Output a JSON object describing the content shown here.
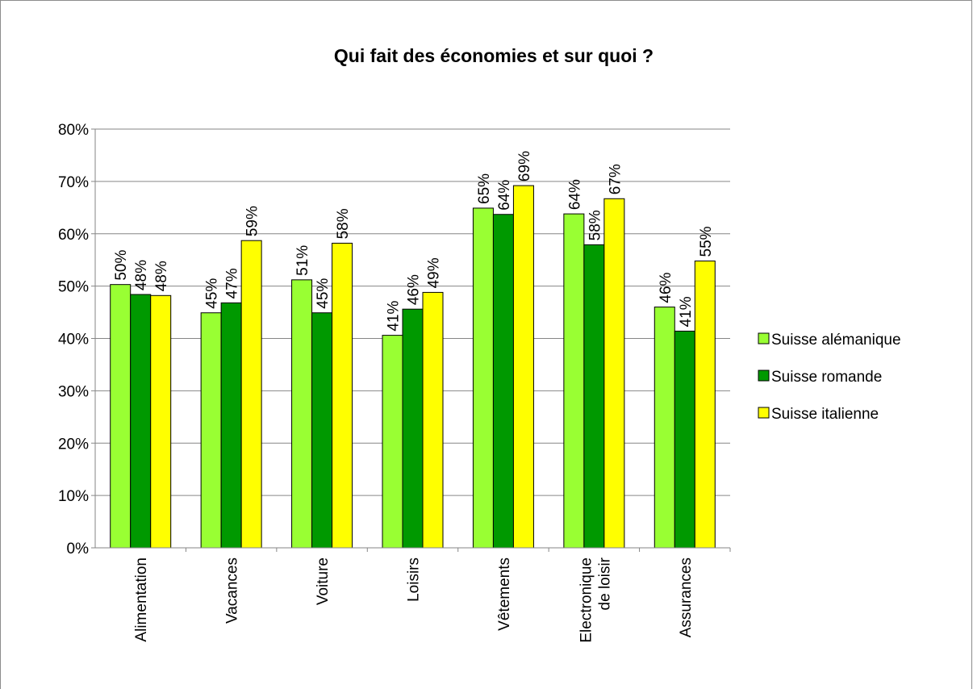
{
  "chart_data": {
    "type": "bar",
    "title": "Qui fait des économies et sur quoi ?",
    "categories": [
      "Alimentation",
      "Vacances",
      "Voiture",
      "Loisirs",
      "Vêtements",
      "Electronique de loisir",
      "Assurances"
    ],
    "series": [
      {
        "name": "Suisse alémanique",
        "color": "#99ff33",
        "values": [
          50.3,
          44.9,
          51.2,
          40.6,
          64.9,
          63.8,
          46.0
        ],
        "value_labels": [
          "50%",
          "45%",
          "51%",
          "41%",
          "65%",
          "64%",
          "46%"
        ]
      },
      {
        "name": "Suisse romande",
        "color": "#009900",
        "values": [
          48.4,
          46.8,
          44.9,
          45.6,
          63.7,
          57.9,
          41.4
        ],
        "value_labels": [
          "48%",
          "47%",
          "45%",
          "46%",
          "64%",
          "58%",
          "41%"
        ]
      },
      {
        "name": "Suisse italienne",
        "color": "#ffff00",
        "values": [
          48.2,
          58.7,
          58.2,
          48.8,
          69.2,
          66.7,
          54.8
        ],
        "value_labels": [
          "48%",
          "59%",
          "58%",
          "49%",
          "69%",
          "67%",
          "55%"
        ]
      }
    ],
    "ylim": [
      0,
      80
    ],
    "yticks": [
      {
        "value": 0,
        "label": "0%"
      },
      {
        "value": 10,
        "label": "10%"
      },
      {
        "value": 20,
        "label": "20%"
      },
      {
        "value": 30,
        "label": "30%"
      },
      {
        "value": 40,
        "label": "40%"
      },
      {
        "value": 50,
        "label": "50%"
      },
      {
        "value": 60,
        "label": "60%"
      },
      {
        "value": 70,
        "label": "70%"
      },
      {
        "value": 80,
        "label": "80%"
      }
    ],
    "grid": true,
    "legend": "right"
  }
}
